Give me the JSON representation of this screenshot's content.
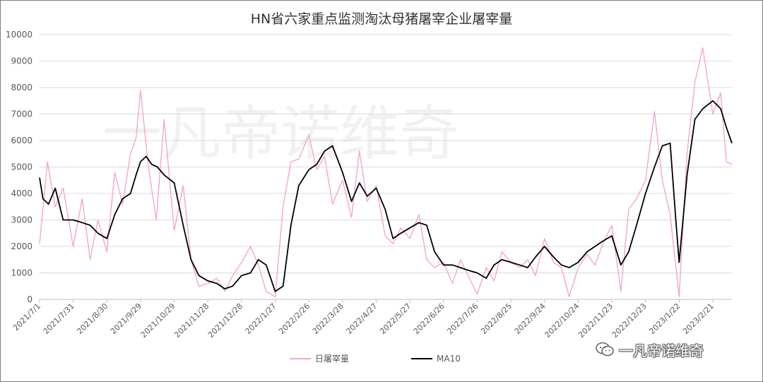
{
  "chart_data": {
    "type": "line",
    "title": "HN省六家重点监测淘汰母猪屠宰企业屠宰量",
    "ylim": [
      0,
      10000
    ],
    "yticks": [
      0,
      1000,
      2000,
      3000,
      4000,
      5000,
      6000,
      7000,
      8000,
      9000,
      10000
    ],
    "xticks": [
      "2021/7/1",
      "2021/7/31",
      "2021/8/30",
      "2021/9/29",
      "2021/10/29",
      "2021/11/28",
      "2021/12/28",
      "2022/1/27",
      "2022/2/26",
      "2022/3/28",
      "2022/4/27",
      "2022/5/27",
      "2022/6/26",
      "2022/7/26",
      "2022/8/25",
      "2022/9/24",
      "2022/10/24",
      "2022/11/23",
      "2022/12/23",
      "2023/1/22",
      "2023/2/21"
    ],
    "xrange": [
      "2021/7/1",
      "2023/3/10"
    ],
    "grid": true,
    "legend_position": "bottom",
    "series": [
      {
        "name": "日屠宰量",
        "color": "#f4a6cf",
        "x": [
          "2021/7/1",
          "2021/7/8",
          "2021/7/15",
          "2021/7/22",
          "2021/7/31",
          "2021/8/8",
          "2021/8/15",
          "2021/8/22",
          "2021/8/30",
          "2021/9/6",
          "2021/9/13",
          "2021/9/20",
          "2021/9/25",
          "2021/9/29",
          "2021/10/6",
          "2021/10/13",
          "2021/10/20",
          "2021/10/29",
          "2021/11/6",
          "2021/11/13",
          "2021/11/20",
          "2021/11/28",
          "2021/12/6",
          "2021/12/13",
          "2021/12/20",
          "2021/12/28",
          "2022/1/5",
          "2022/1/12",
          "2022/1/19",
          "2022/1/27",
          "2022/2/3",
          "2022/2/10",
          "2022/2/17",
          "2022/2/26",
          "2022/3/5",
          "2022/3/12",
          "2022/3/19",
          "2022/3/28",
          "2022/4/5",
          "2022/4/12",
          "2022/4/19",
          "2022/4/27",
          "2022/5/5",
          "2022/5/12",
          "2022/5/19",
          "2022/5/27",
          "2022/6/4",
          "2022/6/11",
          "2022/6/18",
          "2022/6/26",
          "2022/7/4",
          "2022/7/11",
          "2022/7/18",
          "2022/7/26",
          "2022/8/3",
          "2022/8/10",
          "2022/8/17",
          "2022/8/25",
          "2022/9/2",
          "2022/9/9",
          "2022/9/16",
          "2022/9/24",
          "2022/10/2",
          "2022/10/9",
          "2022/10/16",
          "2022/10/24",
          "2022/11/1",
          "2022/11/8",
          "2022/11/15",
          "2022/11/23",
          "2022/12/1",
          "2022/12/8",
          "2022/12/15",
          "2022/12/23",
          "2022/12/31",
          "2023/1/7",
          "2023/1/14",
          "2023/1/22",
          "2023/1/29",
          "2023/2/5",
          "2023/2/12",
          "2023/2/21",
          "2023/2/28",
          "2023/3/5",
          "2023/3/10"
        ],
        "values": [
          2100,
          5200,
          3500,
          4200,
          2000,
          3800,
          1500,
          3000,
          1800,
          4800,
          3600,
          5500,
          6100,
          7900,
          5000,
          3000,
          6800,
          2600,
          4300,
          1500,
          500,
          600,
          800,
          300,
          900,
          1400,
          2000,
          1300,
          300,
          100,
          3500,
          5200,
          5300,
          6200,
          4900,
          5400,
          3600,
          4500,
          3100,
          5600,
          3700,
          4300,
          2400,
          2100,
          2700,
          2300,
          3200,
          1500,
          1200,
          1400,
          600,
          1500,
          900,
          200,
          1200,
          700,
          1800,
          1400,
          1200,
          1500,
          900,
          2300,
          1400,
          1200,
          100,
          1200,
          1700,
          1300,
          2100,
          2800,
          300,
          3400,
          3800,
          4500,
          7100,
          4500,
          3200,
          100,
          5500,
          8200,
          9500,
          7000,
          7800,
          5200,
          5100
        ]
      },
      {
        "name": "MA10",
        "color": "#000000",
        "x": [
          "2021/7/1",
          "2021/7/4",
          "2021/7/9",
          "2021/7/15",
          "2021/7/22",
          "2021/7/31",
          "2021/8/8",
          "2021/8/15",
          "2021/8/22",
          "2021/8/30",
          "2021/9/6",
          "2021/9/13",
          "2021/9/20",
          "2021/9/25",
          "2021/9/29",
          "2021/10/4",
          "2021/10/9",
          "2021/10/14",
          "2021/10/20",
          "2021/10/29",
          "2021/11/6",
          "2021/11/13",
          "2021/11/20",
          "2021/11/28",
          "2021/12/6",
          "2021/12/13",
          "2021/12/20",
          "2021/12/28",
          "2022/1/5",
          "2022/1/12",
          "2022/1/19",
          "2022/1/27",
          "2022/2/3",
          "2022/2/10",
          "2022/2/17",
          "2022/2/26",
          "2022/3/5",
          "2022/3/12",
          "2022/3/19",
          "2022/3/28",
          "2022/4/5",
          "2022/4/12",
          "2022/4/19",
          "2022/4/27",
          "2022/5/5",
          "2022/5/12",
          "2022/5/19",
          "2022/5/27",
          "2022/6/4",
          "2022/6/11",
          "2022/6/18",
          "2022/6/26",
          "2022/7/4",
          "2022/7/11",
          "2022/7/18",
          "2022/7/26",
          "2022/8/3",
          "2022/8/10",
          "2022/8/17",
          "2022/8/25",
          "2022/9/2",
          "2022/9/9",
          "2022/9/16",
          "2022/9/24",
          "2022/10/2",
          "2022/10/9",
          "2022/10/16",
          "2022/10/24",
          "2022/11/1",
          "2022/11/8",
          "2022/11/15",
          "2022/11/23",
          "2022/12/1",
          "2022/12/8",
          "2022/12/15",
          "2022/12/23",
          "2022/12/31",
          "2023/1/7",
          "2023/1/14",
          "2023/1/19",
          "2023/1/22",
          "2023/1/29",
          "2023/2/5",
          "2023/2/12",
          "2023/2/21",
          "2023/2/28",
          "2023/3/5",
          "2023/3/10"
        ],
        "values": [
          4600,
          3800,
          3600,
          4200,
          3000,
          3000,
          2900,
          2800,
          2500,
          2300,
          3200,
          3800,
          4000,
          4700,
          5200,
          5400,
          5100,
          5000,
          4700,
          4400,
          2800,
          1500,
          900,
          700,
          600,
          400,
          500,
          900,
          1000,
          1500,
          1300,
          300,
          500,
          2800,
          4300,
          4900,
          5100,
          5600,
          5800,
          4800,
          3700,
          4400,
          3900,
          4200,
          3400,
          2300,
          2500,
          2700,
          2900,
          2800,
          1800,
          1300,
          1300,
          1200,
          1100,
          1000,
          800,
          1300,
          1500,
          1400,
          1300,
          1200,
          1600,
          2000,
          1600,
          1300,
          1200,
          1400,
          1800,
          2000,
          2200,
          2400,
          1300,
          1800,
          2800,
          4000,
          5000,
          5800,
          5900,
          3000,
          1400,
          4700,
          6800,
          7200,
          7500,
          7200,
          6500,
          5900
        ]
      }
    ]
  },
  "watermark": "一凡帝诺维奇",
  "badge": {
    "icon": "wechat-icon",
    "text": "一凡帝诺维奇"
  }
}
